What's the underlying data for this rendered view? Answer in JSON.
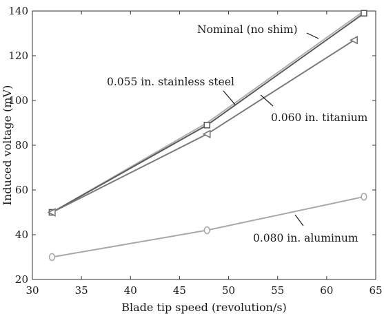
{
  "chart_data": {
    "type": "line",
    "xlabel": "Blade tip speed (revolution/s)",
    "ylabel": "Induced voltage (mV)",
    "xlim": [
      30,
      65
    ],
    "ylim": [
      20,
      140
    ],
    "xticks": [
      "30",
      "35",
      "40",
      "45",
      "50",
      "55",
      "60",
      "65"
    ],
    "yticks": [
      "20",
      "40",
      "60",
      "80",
      "100",
      "120",
      "140"
    ],
    "grid": false,
    "legend": "none (series labeled by annotations with leader lines)",
    "series": [
      {
        "name": "Nominal (no shim)",
        "marker": "none",
        "color": "#b0b0b0",
        "x": [
          32,
          47.8,
          63.8
        ],
        "y": [
          50,
          90,
          140
        ]
      },
      {
        "name": "0.055 in. stainless steel",
        "marker": "square",
        "color": "#5a5a5a",
        "x": [
          32,
          47.8,
          63.8
        ],
        "y": [
          50,
          89,
          139
        ]
      },
      {
        "name": "0.060 in. titanium",
        "marker": "triangle-left",
        "color": "#7a7a7a",
        "x": [
          32,
          47.8,
          62.8
        ],
        "y": [
          50,
          85,
          127
        ]
      },
      {
        "name": "0.080 in. aluminum",
        "marker": "circle",
        "color": "#a8a8a8",
        "x": [
          32,
          47.8,
          63.8
        ],
        "y": [
          30,
          42,
          57
        ]
      }
    ],
    "annotations": [
      {
        "text": "Nominal (no shim)",
        "target_series": 0
      },
      {
        "text": "0.055 in. stainless steel",
        "target_series": 1
      },
      {
        "text": "0.060 in. titanium",
        "target_series": 2
      },
      {
        "text": "0.080 in. aluminum",
        "target_series": 3
      }
    ]
  }
}
